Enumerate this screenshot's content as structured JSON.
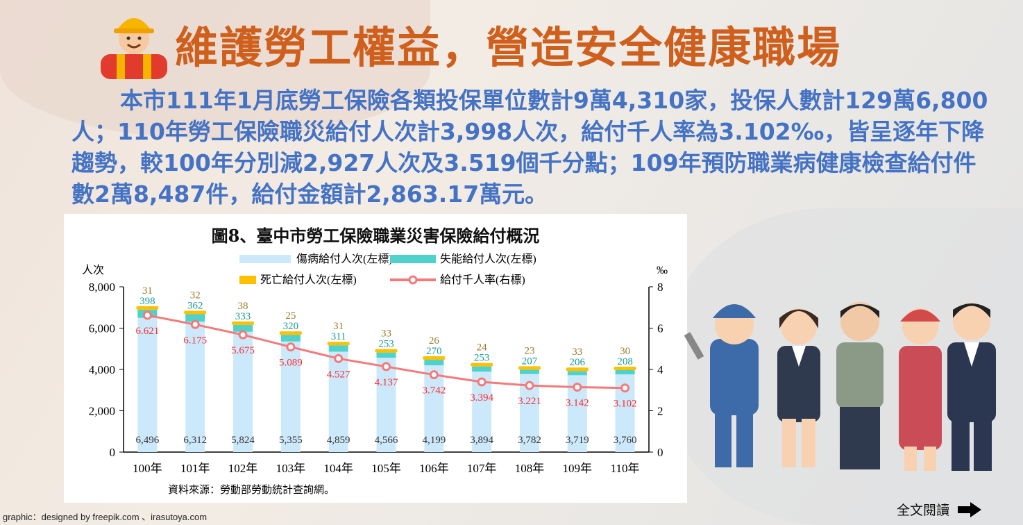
{
  "header": {
    "title": "維護勞工權益，營造安全健康職場"
  },
  "paragraph": "本市111年1月底勞工保險各類投保單位數計9萬4,310家，投保人數計129萬6,800人；110年勞工保險職災給付人次計3,998人次，給付千人率為3.102‰，皆呈逐年下降趨勢，較100年分別減2,927人次及3.519個千分點；109年預防職業病健康檢查給付件數2萬8,487件，給付金額計2,863.17萬元。",
  "chart_data": {
    "type": "bar",
    "title": "圖8、臺中市勞工保險職業災害保險給付概況",
    "categories": [
      "100年",
      "101年",
      "102年",
      "103年",
      "104年",
      "105年",
      "106年",
      "107年",
      "108年",
      "109年",
      "110年"
    ],
    "series": [
      {
        "name": "傷病給付人次(左標)",
        "type": "stacked-bar",
        "color": "#cce9fb",
        "values": [
          6496,
          6312,
          5824,
          5355,
          4859,
          4566,
          4199,
          3894,
          3782,
          3719,
          3760
        ]
      },
      {
        "name": "失能給付人次(左標)",
        "type": "stacked-bar",
        "color": "#4fd1cc",
        "values": [
          398,
          362,
          333,
          320,
          311,
          253,
          270,
          253,
          207,
          206,
          208
        ]
      },
      {
        "name": "死亡給付人次(左標)",
        "type": "stacked-bar",
        "color": "#ffc000",
        "values": [
          31,
          32,
          38,
          25,
          31,
          33,
          26,
          24,
          23,
          33,
          30
        ]
      },
      {
        "name": "給付千人率(右標)",
        "type": "line",
        "axis": "right",
        "color": "#f47a7a",
        "values": [
          6.621,
          6.175,
          5.675,
          5.089,
          4.527,
          4.137,
          3.742,
          3.394,
          3.221,
          3.142,
          3.102
        ]
      }
    ],
    "ylabel_left": "人次",
    "ylabel_right": "‰",
    "ylim_left": [
      0,
      8000
    ],
    "yticks_left": [
      "0",
      "2,000",
      "4,000",
      "6,000",
      "8,000"
    ],
    "ylim_right": [
      0,
      8
    ],
    "yticks_right": [
      "0",
      "2",
      "4",
      "6",
      "8"
    ],
    "legend_position": "top",
    "source": "資料來源：勞動部勞動統計查詢網。"
  },
  "footer": {
    "credit": "graphic：designed by freepik.com 、irasutoya.com",
    "read_more": "全文閱讀"
  }
}
